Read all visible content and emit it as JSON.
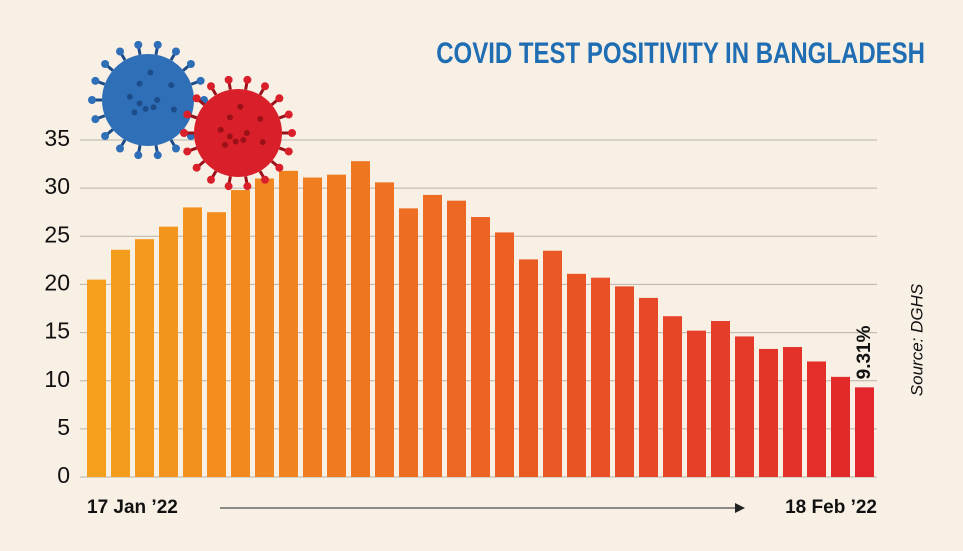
{
  "chart_data": {
    "type": "bar",
    "title": "COVID TEST POSITIVITY IN BANGLADESH",
    "source": "Source: DGHS",
    "categories": [
      "17 Jan ’22",
      null,
      null,
      null,
      null,
      null,
      null,
      null,
      null,
      null,
      null,
      null,
      null,
      null,
      null,
      null,
      null,
      null,
      null,
      null,
      null,
      null,
      null,
      null,
      null,
      null,
      null,
      null,
      null,
      null,
      null,
      null,
      "18 Feb ’22"
    ],
    "values": [
      20.5,
      23.6,
      24.7,
      26.0,
      28.0,
      27.5,
      29.8,
      31.0,
      31.8,
      31.1,
      31.4,
      32.8,
      30.6,
      27.9,
      29.3,
      28.7,
      27.0,
      25.4,
      22.6,
      23.5,
      21.1,
      20.7,
      19.8,
      18.6,
      16.7,
      15.2,
      16.2,
      14.6,
      13.3,
      13.5,
      12.0,
      10.4,
      9.31
    ],
    "value_labels": [
      null,
      null,
      null,
      null,
      null,
      null,
      null,
      null,
      null,
      null,
      null,
      null,
      null,
      null,
      null,
      null,
      null,
      null,
      null,
      null,
      null,
      null,
      null,
      null,
      null,
      null,
      null,
      null,
      null,
      null,
      null,
      null,
      "9.31%"
    ],
    "colors": [
      "#f5a01c",
      "#e2262b"
    ],
    "ylim": [
      0,
      35
    ],
    "yticks": [
      0,
      5,
      10,
      15,
      20,
      25,
      30,
      35
    ],
    "grid": true
  }
}
